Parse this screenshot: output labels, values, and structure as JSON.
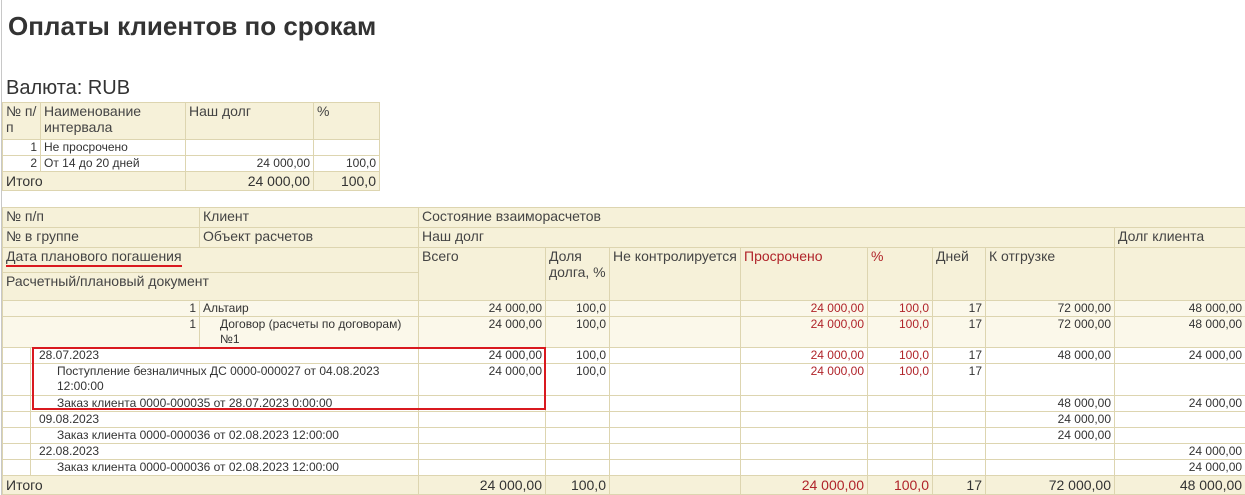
{
  "title": "Оплаты клиентов по срокам",
  "currency": "Валюта: RUB",
  "intervals": {
    "header": [
      "№ п/п",
      "Наименование интервала",
      "Наш долг",
      "%"
    ],
    "rows": [
      [
        "1",
        "Не просрочено",
        null,
        null
      ],
      [
        "2",
        "От 14 до 20 дней",
        "24 000,00",
        "100,0"
      ]
    ],
    "total": {
      "label": "Итого",
      "debt": "24 000,00",
      "percent": "100,0"
    }
  },
  "report": {
    "header": {
      "row1": [
        "№ п/п",
        "Клиент",
        "Состояние взаиморасчетов"
      ],
      "row2": [
        "№ в группе",
        "Объект расчетов",
        "Наш долг",
        "Долг клиента"
      ],
      "date": "Дата планового погашения",
      "document": "Расчетный/плановый документ",
      "columns": [
        "Всего",
        "Доля долга, %",
        "Не контролируется",
        "Просрочено",
        "%",
        "Дней",
        "К отгрузке"
      ]
    },
    "rows": [
      {
        "num": "1",
        "client": "Альтаир",
        "values": [
          "24 000,00",
          "100,0",
          null,
          "24 000,00",
          "100,0",
          "17",
          "72 000,00",
          "48 000,00"
        ]
      },
      {
        "num": "1",
        "contract": "Договор (расчеты по договорам) №1",
        "values": [
          "24 000,00",
          "100,0",
          null,
          "24 000,00",
          "100,0",
          "17",
          "72 000,00",
          "48 000,00"
        ]
      },
      {
        "date": "28.07.2023",
        "values": [
          "24 000,00",
          "100,0",
          null,
          "24 000,00",
          "100,0",
          "17",
          "48 000,00",
          "24 000,00"
        ]
      },
      {
        "document": "Поступление безналичных ДС 0000-000027 от 04.08.2023 12:00:00",
        "values": [
          "24 000,00",
          "100,0",
          null,
          "24 000,00",
          "100,0",
          "17",
          null,
          null
        ]
      },
      {
        "document": "Заказ клиента 0000-000035 от 28.07.2023 0:00:00",
        "values": [
          null,
          null,
          null,
          null,
          null,
          null,
          "48 000,00",
          "24 000,00"
        ]
      },
      {
        "date": "09.08.2023",
        "values": [
          null,
          null,
          null,
          null,
          null,
          null,
          "24 000,00",
          null
        ]
      },
      {
        "document": "Заказ клиента 0000-000036 от 02.08.2023 12:00:00",
        "values": [
          null,
          null,
          null,
          null,
          null,
          null,
          "24 000,00",
          null
        ]
      },
      {
        "date": "22.08.2023",
        "values": [
          null,
          null,
          null,
          null,
          null,
          null,
          null,
          "24 000,00"
        ]
      },
      {
        "document": "Заказ клиента 0000-000036 от 02.08.2023 12:00:00",
        "values": [
          null,
          null,
          null,
          null,
          null,
          null,
          null,
          "24 000,00"
        ]
      }
    ],
    "total": {
      "label": "Итого",
      "values": [
        "24 000,00",
        "100,0",
        null,
        "24 000,00",
        "100,0",
        "17",
        "72 000,00",
        "48 000,00"
      ]
    }
  }
}
